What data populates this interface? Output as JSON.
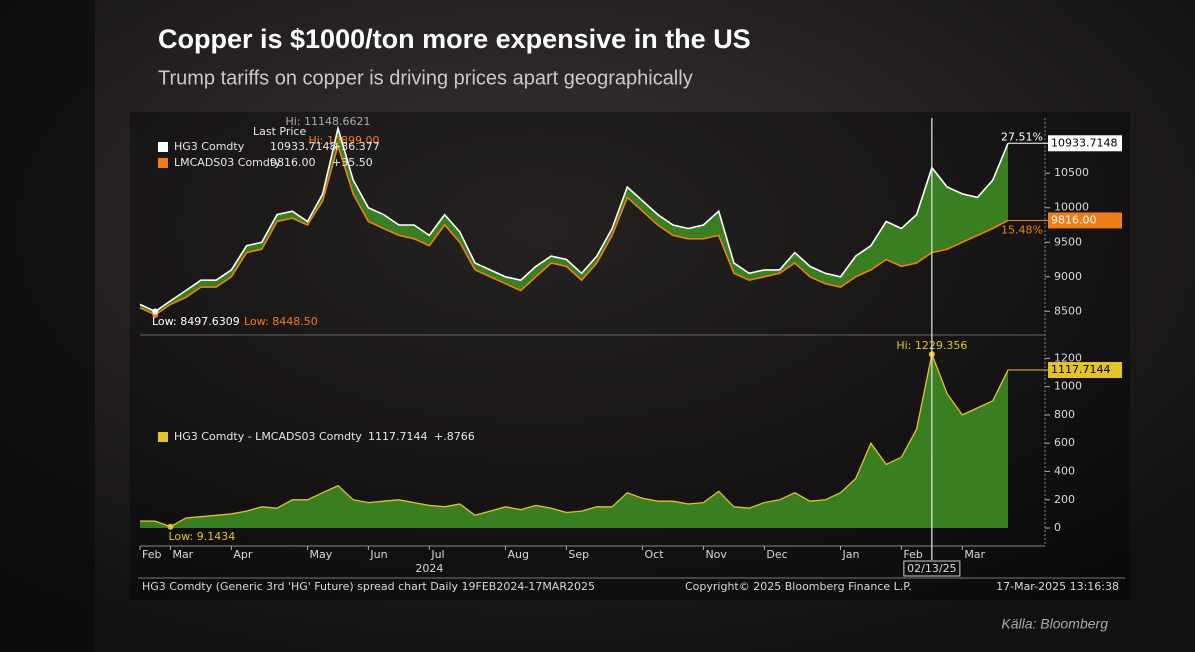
{
  "chart_data": [
    {
      "type": "line",
      "title": "Copper is $1000/ton more expensive in the US",
      "subtitle": "Trump tariffs on copper is driving prices apart geographically",
      "legend_header": "Last Price",
      "fill_color": "#3d8b22",
      "series": [
        {
          "name": "HG3 Comdty",
          "color": "#ffffff",
          "values": [
            8600,
            8497.6309,
            8650,
            8800,
            8950,
            8950,
            9100,
            9450,
            9500,
            9900,
            9950,
            9800,
            10200,
            11148.6621,
            10400,
            10000,
            9900,
            9750,
            9750,
            9600,
            9900,
            9650,
            9200,
            9100,
            9000,
            8950,
            9150,
            9300,
            9250,
            9050,
            9300,
            9700,
            10300,
            10100,
            9900,
            9750,
            9700,
            9750,
            9950,
            9200,
            9050,
            9100,
            9100,
            9350,
            9150,
            9050,
            9000,
            9300,
            9450,
            9800,
            9700,
            9900,
            10580,
            10300,
            10200,
            10150,
            10400,
            10933.7148
          ],
          "change": "+36.377",
          "pct_label": "27.51%",
          "hi_label": "Hi: 11148.6621",
          "low_label": "Low: 8497.6309"
        },
        {
          "name": "LMCADS03 Comdty",
          "color": "#f07c1a",
          "values": [
            8550,
            8448.5,
            8600,
            8700,
            8850,
            8850,
            9000,
            9350,
            9400,
            9800,
            9850,
            9750,
            10100,
            10899,
            10200,
            9800,
            9700,
            9600,
            9550,
            9450,
            9750,
            9500,
            9100,
            9000,
            8900,
            8800,
            9000,
            9200,
            9150,
            8950,
            9200,
            9600,
            10150,
            9950,
            9750,
            9600,
            9550,
            9550,
            9600,
            9050,
            8950,
            9000,
            9050,
            9200,
            9000,
            8900,
            8850,
            9000,
            9100,
            9250,
            9150,
            9200,
            9350,
            9400,
            9500,
            9600,
            9700,
            9816
          ],
          "value_labels": [
            null,
            null,
            null,
            null,
            null,
            null,
            null,
            null,
            null,
            null,
            null,
            null,
            null,
            null,
            null,
            null,
            null,
            null,
            null,
            null,
            null,
            null,
            null,
            null,
            null,
            null,
            null,
            null,
            null,
            null,
            null,
            null,
            null,
            null,
            null,
            null,
            null,
            null,
            null,
            null,
            null,
            null,
            null,
            null,
            null,
            null,
            null,
            null,
            null,
            null,
            null,
            null,
            null,
            null,
            null,
            null,
            null,
            "9816.00"
          ],
          "change": "+35.50",
          "pct_label": "15.48%",
          "hi_label": "Hi: 10899.00",
          "low_label": "Low: 8448.50"
        }
      ],
      "ylim": [
        8200,
        11300
      ],
      "yticks": [
        8500,
        9000,
        9500,
        10000,
        10500
      ]
    },
    {
      "type": "area",
      "categories": [
        "Feb",
        null,
        "Mar",
        null,
        null,
        null,
        "Apr",
        null,
        null,
        null,
        null,
        "May",
        null,
        null,
        null,
        "Jun",
        null,
        null,
        null,
        "Jul",
        null,
        null,
        null,
        null,
        "Aug",
        null,
        null,
        null,
        "Sep",
        null,
        null,
        null,
        null,
        "Oct",
        null,
        null,
        null,
        "Nov",
        null,
        null,
        null,
        "Dec",
        null,
        null,
        null,
        null,
        "Jan",
        null,
        null,
        null,
        "Feb",
        null,
        null,
        null,
        "Mar",
        null,
        null,
        null
      ],
      "year_label": "2024",
      "marker_label": "02/13/25",
      "series": [
        {
          "name": "HG3 Comdty - LMCADS03 Comdty",
          "color": "#e6c229",
          "fill": "#3d8b22",
          "values": [
            50,
            49,
            9.1434,
            70,
            80,
            90,
            100,
            120,
            150,
            140,
            200,
            200,
            250,
            300,
            200,
            180,
            190,
            200,
            180,
            160,
            150,
            170,
            90,
            120,
            150,
            130,
            160,
            140,
            110,
            120,
            150,
            150,
            250,
            210,
            190,
            190,
            170,
            180,
            260,
            150,
            140,
            180,
            200,
            250,
            190,
            200,
            250,
            350,
            600,
            450,
            500,
            700,
            1229.356,
            950,
            800,
            850,
            900,
            1117.7144
          ],
          "change": "+.8766",
          "hi_label": "Hi: 1229.356",
          "low_label": "Low: 9.1434"
        }
      ],
      "ylim": [
        -120,
        1330
      ],
      "yticks": [
        0,
        200,
        400,
        600,
        800,
        1000,
        1200
      ]
    }
  ],
  "footer": {
    "description": "HG3 Comdty (Generic 3rd 'HG' Future) spread chart  Daily 19FEB2024-17MAR2025",
    "copyright": "Copyright© 2025 Bloomberg Finance L.P.",
    "timestamp": "17-Mar-2025 13:16:38",
    "source": "Källa: Bloomberg"
  }
}
